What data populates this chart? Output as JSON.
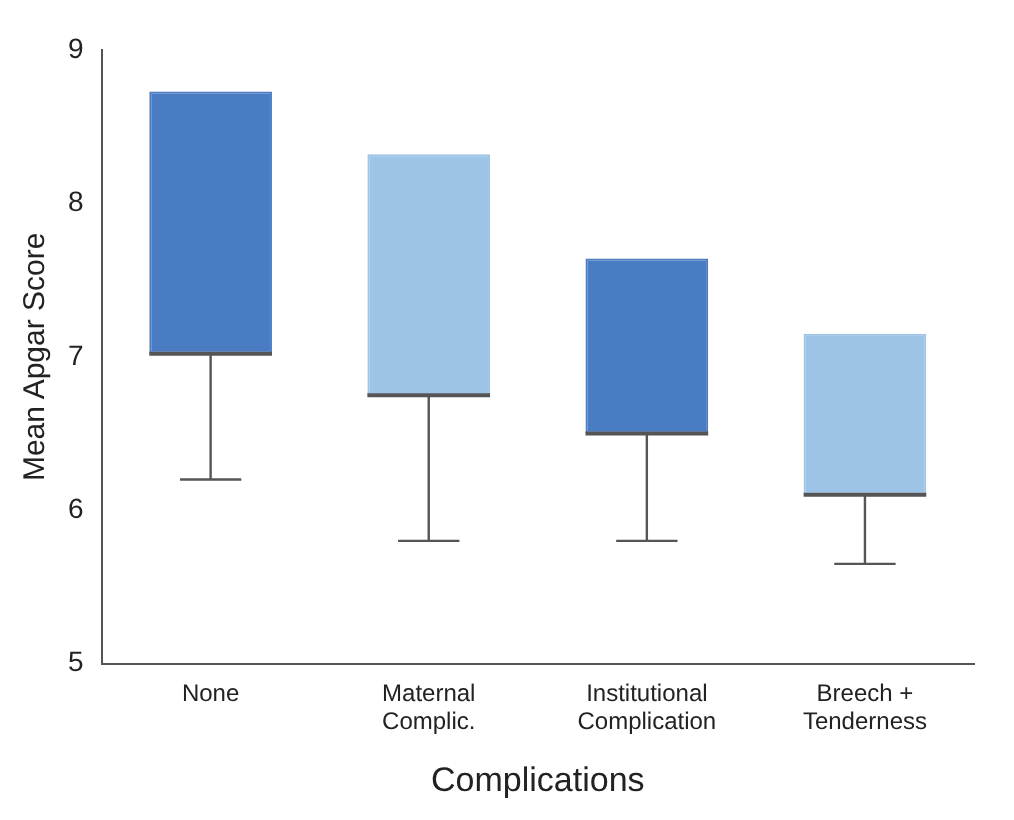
{
  "chart_data": {
    "type": "box",
    "ylabel": "Mean Apgar Score",
    "xlabel": "Complications",
    "categories": [
      "None",
      "Maternal\nComplic.",
      "Institutional\nComplication",
      "Breech +\nTenderness"
    ],
    "colors": [
      "#4a7cc4",
      "#9dc3e6",
      "#4a7cc4",
      "#9dc3e6"
    ],
    "boxes": [
      {
        "low": 6.2,
        "q1": 7.02,
        "median": 7.02,
        "q3": 8.73,
        "high": 8.73
      },
      {
        "low": 5.8,
        "q1": 6.75,
        "median": 6.75,
        "q3": 8.32,
        "high": 8.32
      },
      {
        "low": 5.8,
        "q1": 6.5,
        "median": 6.5,
        "q3": 7.64,
        "high": 7.64
      },
      {
        "low": 5.65,
        "q1": 6.1,
        "median": 6.1,
        "q3": 7.15,
        "high": 7.15
      }
    ],
    "ylim": [
      5,
      9
    ],
    "yticks": [
      5,
      6,
      7,
      8,
      9
    ]
  }
}
